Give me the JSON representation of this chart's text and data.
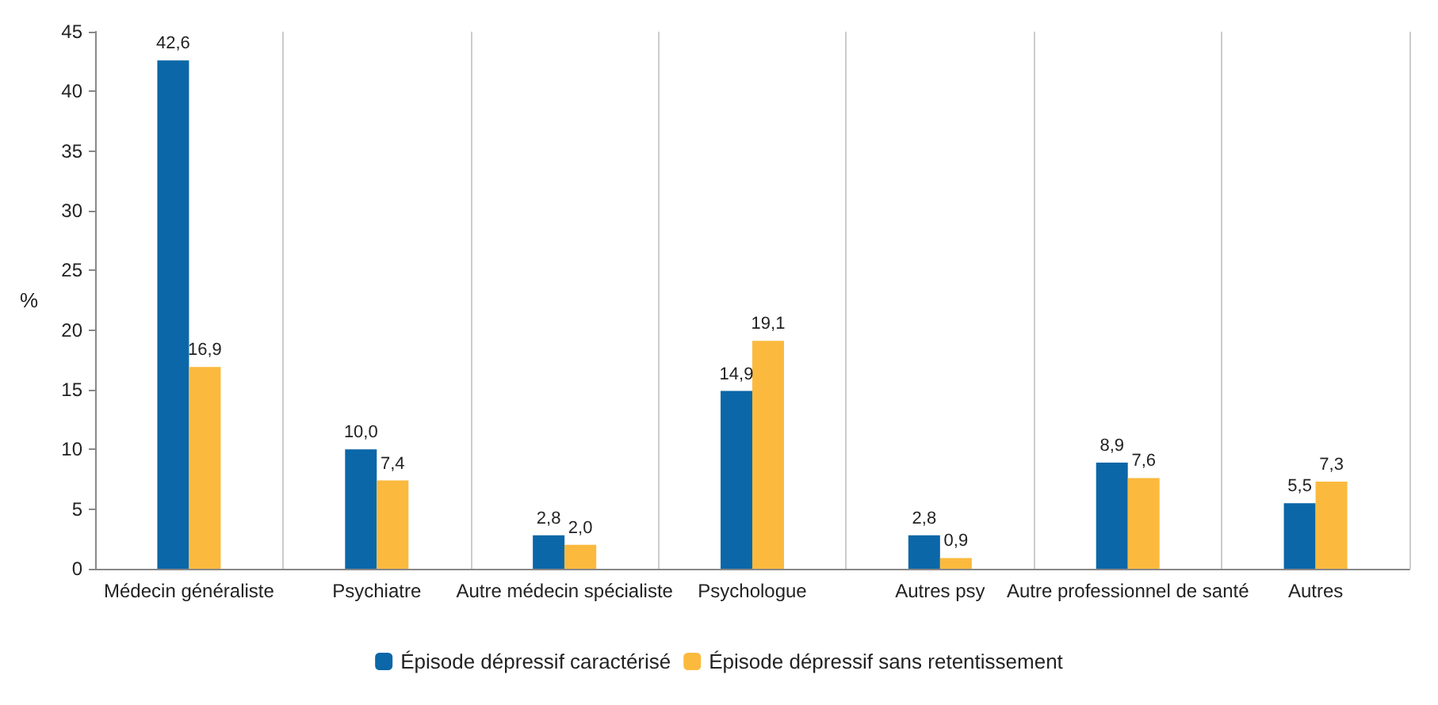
{
  "chart_data": {
    "type": "bar",
    "ylabel": "%",
    "categories": [
      "Médecin généraliste",
      "Psychiatre",
      "Autre médecin spécialiste",
      "Psychologue",
      "Autres psy",
      "Autre professionnel de santé",
      "Autres"
    ],
    "series": [
      {
        "name": "Épisode dépressif caractérisé",
        "color": "#0b67a8",
        "values": [
          42.6,
          10.0,
          2.8,
          14.9,
          2.8,
          8.9,
          5.5
        ],
        "value_labels": [
          "42,6",
          "10,0",
          "2,8",
          "14,9",
          "2,8",
          "8,9",
          "5,5"
        ]
      },
      {
        "name": "Épisode dépressif sans retentissement",
        "color": "#fbba3e",
        "values": [
          16.9,
          7.4,
          2.0,
          19.1,
          0.9,
          7.6,
          7.3
        ],
        "value_labels": [
          "16,9",
          "7,4",
          "2,0",
          "19,1",
          "0,9",
          "7,6",
          "7,3"
        ]
      }
    ],
    "ylim": [
      0,
      45
    ],
    "yticks": [
      0,
      5,
      10,
      15,
      20,
      25,
      30,
      35,
      40,
      45
    ],
    "grid": "x",
    "legend": "bottom"
  }
}
